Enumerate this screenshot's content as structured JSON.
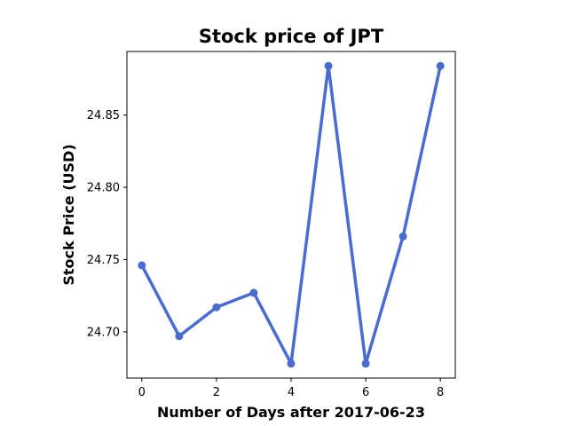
{
  "chart_data": {
    "type": "line",
    "title": "Stock price of JPT",
    "xlabel": "Number of Days after 2017-06-23",
    "ylabel": "Stock Price (USD)",
    "x": [
      0,
      1,
      2,
      3,
      4,
      5,
      6,
      7,
      8
    ],
    "series": [
      {
        "values": [
          24.746,
          24.697,
          24.717,
          24.727,
          24.678,
          24.884,
          24.678,
          24.766,
          24.884
        ]
      }
    ],
    "xlim": [
      -0.4,
      8.4
    ],
    "ylim": [
      24.668,
      24.894
    ],
    "xticks": [
      0,
      2,
      4,
      6,
      8
    ],
    "xtick_labels": [
      "0",
      "2",
      "4",
      "6",
      "8"
    ],
    "yticks": [
      24.7,
      24.75,
      24.8,
      24.85
    ],
    "ytick_labels": [
      "24.70",
      "24.75",
      "24.80",
      "24.85"
    ],
    "grid": false,
    "colors": {
      "line": "#4a6bd0"
    }
  }
}
